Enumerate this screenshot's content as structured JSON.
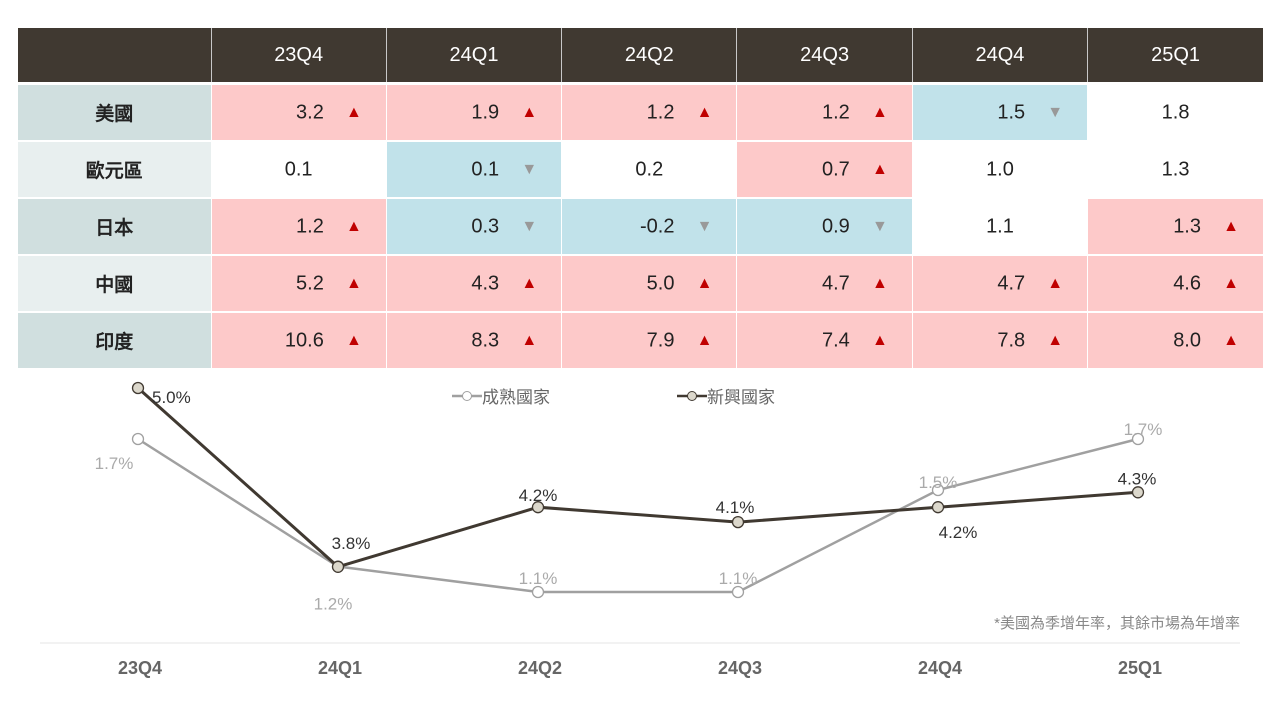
{
  "table": {
    "columns": [
      "23Q4",
      "24Q1",
      "24Q2",
      "24Q3",
      "24Q4",
      "25Q1"
    ],
    "rows": [
      {
        "label": "美國",
        "cells": [
          {
            "v": "3.2",
            "t": "up"
          },
          {
            "v": "1.9",
            "t": "up"
          },
          {
            "v": "1.2",
            "t": "up"
          },
          {
            "v": "1.2",
            "t": "up"
          },
          {
            "v": "1.5",
            "t": "down"
          },
          {
            "v": "1.8",
            "t": "none"
          }
        ]
      },
      {
        "label": "歐元區",
        "cells": [
          {
            "v": "0.1",
            "t": "none"
          },
          {
            "v": "0.1",
            "t": "down"
          },
          {
            "v": "0.2",
            "t": "none"
          },
          {
            "v": "0.7",
            "t": "up"
          },
          {
            "v": "1.0",
            "t": "none"
          },
          {
            "v": "1.3",
            "t": "none"
          }
        ]
      },
      {
        "label": "日本",
        "cells": [
          {
            "v": "1.2",
            "t": "up"
          },
          {
            "v": "0.3",
            "t": "down"
          },
          {
            "v": "-0.2",
            "t": "down"
          },
          {
            "v": "0.9",
            "t": "down"
          },
          {
            "v": "1.1",
            "t": "none"
          },
          {
            "v": "1.3",
            "t": "up"
          }
        ]
      },
      {
        "label": "中國",
        "cells": [
          {
            "v": "5.2",
            "t": "up"
          },
          {
            "v": "4.3",
            "t": "up"
          },
          {
            "v": "5.0",
            "t": "up"
          },
          {
            "v": "4.7",
            "t": "up"
          },
          {
            "v": "4.7",
            "t": "up"
          },
          {
            "v": "4.6",
            "t": "up"
          }
        ]
      },
      {
        "label": "印度",
        "cells": [
          {
            "v": "10.6",
            "t": "up"
          },
          {
            "v": "8.3",
            "t": "up"
          },
          {
            "v": "7.9",
            "t": "up"
          },
          {
            "v": "7.4",
            "t": "up"
          },
          {
            "v": "7.8",
            "t": "up"
          },
          {
            "v": "8.0",
            "t": "up"
          }
        ]
      }
    ]
  },
  "chart_data": {
    "type": "line",
    "categories": [
      "23Q4",
      "24Q1",
      "24Q2",
      "24Q3",
      "24Q4",
      "25Q1"
    ],
    "series": [
      {
        "name": "成熟國家",
        "values": [
          1.7,
          1.2,
          1.1,
          1.1,
          1.5,
          1.7
        ],
        "labels": [
          "1.7%",
          "1.2%",
          "1.1%",
          "1.1%",
          "1.5%",
          "1.7%"
        ],
        "color": "#a0a0a0"
      },
      {
        "name": "新興國家",
        "values": [
          5.0,
          3.8,
          4.2,
          4.1,
          4.2,
          4.3
        ],
        "labels": [
          "5.0%",
          "3.8%",
          "4.2%",
          "4.1%",
          "4.2%",
          "4.3%"
        ],
        "color": "#403931"
      }
    ],
    "legend": "top-center",
    "footnote": "*美國為季增年率，其餘市場為年增率"
  }
}
